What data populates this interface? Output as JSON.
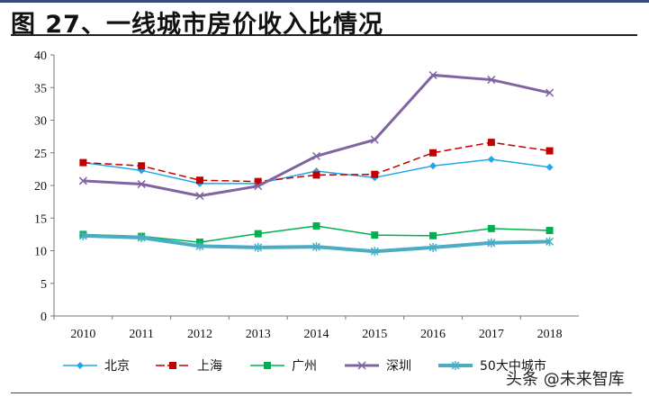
{
  "title": "图 27、一线城市房价收入比情况",
  "watermark": "头条 @未来智库",
  "chart_data": {
    "type": "line",
    "title": "图 27、一线城市房价收入比情况",
    "xlabel": "",
    "ylabel": "",
    "categories": [
      "2010",
      "2011",
      "2012",
      "2013",
      "2014",
      "2015",
      "2016",
      "2017",
      "2018"
    ],
    "ylim": [
      0,
      40
    ],
    "yticks": [
      0,
      5,
      10,
      15,
      20,
      25,
      30,
      35,
      40
    ],
    "grid": false,
    "legend": "bottom",
    "series": [
      {
        "name": "北京",
        "color": "#1fa8e8",
        "marker": "diamond",
        "dash": false,
        "width": 1.5,
        "values": [
          23.5,
          22.3,
          20.3,
          20.3,
          22.2,
          21.2,
          23.0,
          24.0,
          22.8
        ]
      },
      {
        "name": "上海",
        "color": "#c00000",
        "marker": "square",
        "dash": true,
        "width": 1.5,
        "values": [
          23.5,
          23.0,
          20.8,
          20.6,
          21.6,
          21.7,
          25.0,
          26.6,
          25.3
        ]
      },
      {
        "name": "广州",
        "color": "#00b050",
        "marker": "square",
        "dash": false,
        "width": 1.5,
        "values": [
          12.5,
          12.2,
          11.3,
          12.6,
          13.8,
          12.4,
          12.3,
          13.4,
          13.1
        ]
      },
      {
        "name": "深圳",
        "color": "#8064a2",
        "marker": "x",
        "dash": false,
        "width": 3,
        "values": [
          20.7,
          20.2,
          18.4,
          19.9,
          24.5,
          27.0,
          36.9,
          36.2,
          34.2
        ]
      },
      {
        "name": "50大中城市",
        "color": "#4bacc6",
        "marker": "star",
        "dash": false,
        "width": 4,
        "values": [
          12.3,
          12.0,
          10.7,
          10.5,
          10.6,
          9.9,
          10.5,
          11.2,
          11.4
        ]
      }
    ]
  }
}
